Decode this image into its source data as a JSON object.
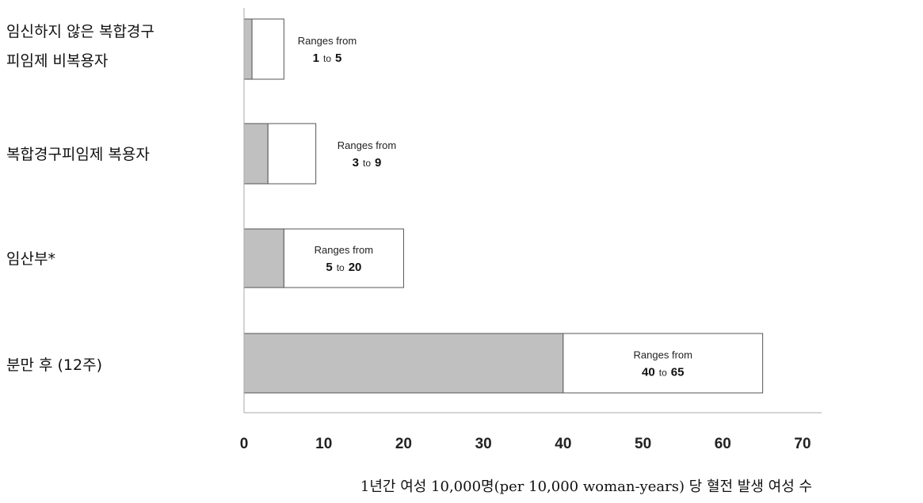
{
  "chart_data": {
    "type": "bar",
    "orientation": "horizontal",
    "stacked": true,
    "categories": [
      [
        "임신하지 않은 복합경구",
        "피임제 비복용자"
      ],
      [
        "복합경구피임제 복용자"
      ],
      [
        "임산부*"
      ],
      [
        "분만 후 (12주)"
      ]
    ],
    "ranges": [
      {
        "min": 1,
        "max": 5
      },
      {
        "min": 3,
        "max": 9
      },
      {
        "min": 5,
        "max": 20
      },
      {
        "min": 40,
        "max": 65
      }
    ],
    "range_label": "Ranges from",
    "range_connector": "to",
    "xticks": [
      0,
      10,
      20,
      30,
      40,
      50,
      60,
      70
    ],
    "xlim": [
      0,
      70
    ],
    "xlabel": "1년간 여성 10,000명(per 10,000 woman-years) 당 혈전 발생 여성 수",
    "colors": {
      "min_fill": "#c0c0c0",
      "range_fill": "#ffffff",
      "stroke": "#555555"
    }
  }
}
